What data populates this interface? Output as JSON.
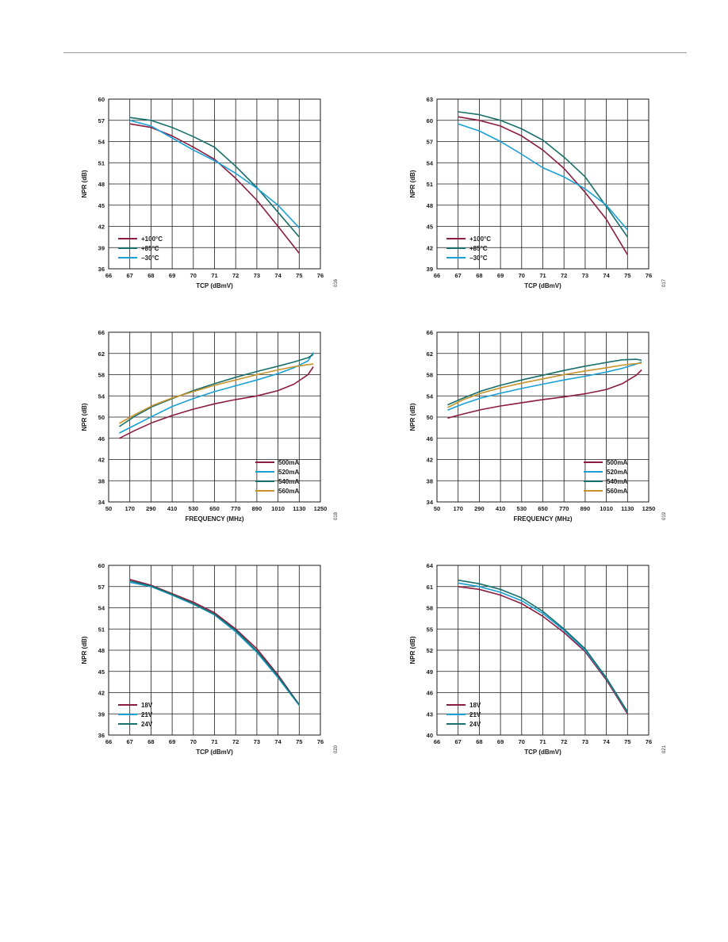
{
  "chart_data": [
    {
      "type": "line",
      "xlabel": "TCP (dBmV)",
      "ylabel": "NPR (dB)",
      "xlim": [
        66,
        76
      ],
      "ylim": [
        36,
        60
      ],
      "xticks": [
        "66",
        "67",
        "68",
        "69",
        "70",
        "71",
        "72",
        "73",
        "74",
        "75",
        "76"
      ],
      "yticks": [
        "36",
        "39",
        "42",
        "45",
        "48",
        "51",
        "54",
        "57",
        "60"
      ],
      "grid": true,
      "legend_position": "bottom-left",
      "figure_number": "016",
      "series": [
        {
          "name": "+100°C",
          "color": "#8c1c40",
          "x": [
            67,
            68,
            69,
            70,
            71,
            72,
            73,
            74,
            75
          ],
          "y": [
            56.5,
            56,
            54.8,
            53.2,
            51.5,
            48.8,
            45.7,
            42.0,
            38.2
          ]
        },
        {
          "name": "+85°C",
          "color": "#17706b",
          "x": [
            67,
            68,
            69,
            70,
            71,
            72,
            73,
            74,
            75
          ],
          "y": [
            57.4,
            57,
            56,
            54.7,
            53.2,
            50.5,
            47.5,
            44.0,
            40.5
          ]
        },
        {
          "name": "−30°C",
          "color": "#1ba0d6",
          "x": [
            67,
            68,
            69,
            70,
            71,
            72,
            73,
            74,
            75
          ],
          "y": [
            57,
            56.2,
            54.5,
            52.8,
            51.3,
            49.5,
            47.4,
            45.0,
            41.8
          ]
        }
      ]
    },
    {
      "type": "line",
      "xlabel": "TCP (dBmV)",
      "ylabel": "NPR (dB)",
      "xlim": [
        66,
        76
      ],
      "ylim": [
        39,
        63
      ],
      "xticks": [
        "66",
        "67",
        "68",
        "69",
        "70",
        "71",
        "72",
        "73",
        "74",
        "75",
        "76"
      ],
      "yticks": [
        "39",
        "42",
        "45",
        "48",
        "51",
        "54",
        "57",
        "60",
        "63"
      ],
      "grid": true,
      "legend_position": "bottom-left",
      "figure_number": "017",
      "series": [
        {
          "name": "+100°C",
          "color": "#8c1c40",
          "x": [
            67,
            68,
            69,
            70,
            71,
            72,
            73,
            74,
            75
          ],
          "y": [
            60.5,
            60.0,
            59.2,
            57.8,
            55.8,
            53.2,
            49.8,
            46.0,
            41.0
          ]
        },
        {
          "name": "+85°C",
          "color": "#17706b",
          "x": [
            67,
            68,
            69,
            70,
            71,
            72,
            73,
            74,
            75
          ],
          "y": [
            61.2,
            60.8,
            60.0,
            58.8,
            57.2,
            54.8,
            52.0,
            47.8,
            43.5
          ]
        },
        {
          "name": "−30°C",
          "color": "#1ba0d6",
          "x": [
            67,
            68,
            69,
            70,
            71,
            72,
            73,
            74,
            75
          ],
          "y": [
            59.5,
            58.5,
            57.0,
            55.2,
            53.3,
            52.0,
            50.3,
            48.0,
            44.5
          ]
        }
      ]
    },
    {
      "type": "line",
      "xlabel": "FREQUENCY (MHz)",
      "ylabel": "NPR (dB)",
      "xlim": [
        50,
        1250
      ],
      "ylim": [
        34,
        66
      ],
      "xticks": [
        "50",
        "170",
        "290",
        "410",
        "530",
        "650",
        "770",
        "890",
        "1010",
        "1130",
        "1250"
      ],
      "yticks": [
        "34",
        "38",
        "42",
        "46",
        "50",
        "54",
        "58",
        "62",
        "66"
      ],
      "grid": true,
      "legend_position": "bottom-right",
      "figure_number": "018",
      "series": [
        {
          "name": "500mA",
          "color": "#8c1c40",
          "x": [
            110,
            200,
            300,
            410,
            530,
            650,
            770,
            890,
            1010,
            1100,
            1180,
            1210
          ],
          "y": [
            46.0,
            47.5,
            49.0,
            50.3,
            51.5,
            52.5,
            53.3,
            54.0,
            55.0,
            56.2,
            58.0,
            59.5
          ]
        },
        {
          "name": "520mA",
          "color": "#1ba0d6",
          "x": [
            110,
            200,
            300,
            410,
            530,
            650,
            770,
            890,
            1010,
            1100,
            1180,
            1210
          ],
          "y": [
            47.0,
            48.5,
            50.2,
            52.0,
            53.5,
            54.8,
            55.9,
            57.0,
            58.2,
            59.3,
            60.6,
            62.2
          ]
        },
        {
          "name": "540mA",
          "color": "#17706b",
          "x": [
            110,
            200,
            300,
            410,
            530,
            650,
            770,
            890,
            1010,
            1100,
            1180,
            1210
          ],
          "y": [
            48.2,
            50.2,
            52.0,
            53.5,
            55.0,
            56.3,
            57.5,
            58.6,
            59.6,
            60.4,
            61.2,
            61.8
          ]
        },
        {
          "name": "560mA",
          "color": "#c8932a",
          "x": [
            110,
            200,
            300,
            410,
            530,
            650,
            770,
            890,
            1010,
            1100,
            1180,
            1210
          ],
          "y": [
            48.8,
            50.5,
            52.2,
            53.6,
            54.8,
            56.0,
            57.0,
            58.0,
            58.9,
            59.5,
            59.9,
            60.0
          ]
        }
      ]
    },
    {
      "type": "line",
      "xlabel": "FREQUENCY (MHz)",
      "ylabel": "NPR (dB)",
      "xlim": [
        50,
        1250
      ],
      "ylim": [
        34,
        66
      ],
      "xticks": [
        "50",
        "170",
        "290",
        "410",
        "530",
        "650",
        "770",
        "890",
        "1010",
        "1130",
        "1250"
      ],
      "yticks": [
        "34",
        "38",
        "42",
        "46",
        "50",
        "54",
        "58",
        "62",
        "66"
      ],
      "grid": true,
      "legend_position": "bottom-right",
      "figure_number": "019",
      "series": [
        {
          "name": "500mA",
          "color": "#8c1c40",
          "x": [
            110,
            200,
            300,
            410,
            530,
            650,
            770,
            890,
            1010,
            1100,
            1180,
            1210
          ],
          "y": [
            49.8,
            50.6,
            51.4,
            52.1,
            52.7,
            53.3,
            53.8,
            54.4,
            55.2,
            56.3,
            57.9,
            58.9
          ]
        },
        {
          "name": "520mA",
          "color": "#1ba0d6",
          "x": [
            110,
            200,
            300,
            410,
            530,
            650,
            770,
            890,
            1010,
            1100,
            1180,
            1210
          ],
          "y": [
            51.3,
            52.5,
            53.6,
            54.5,
            55.4,
            56.2,
            57.0,
            57.7,
            58.5,
            59.2,
            60.0,
            60.4
          ]
        },
        {
          "name": "540mA",
          "color": "#17706b",
          "x": [
            110,
            200,
            300,
            410,
            530,
            650,
            770,
            890,
            1010,
            1100,
            1180,
            1210
          ],
          "y": [
            52.3,
            53.6,
            54.9,
            56.0,
            57.0,
            57.9,
            58.8,
            59.6,
            60.3,
            60.8,
            60.9,
            60.7
          ]
        },
        {
          "name": "560mA",
          "color": "#c8932a",
          "x": [
            110,
            200,
            300,
            410,
            530,
            650,
            770,
            890,
            1010,
            1100,
            1180,
            1210
          ],
          "y": [
            51.8,
            53.3,
            54.5,
            55.5,
            56.4,
            57.2,
            58.0,
            58.7,
            59.3,
            59.8,
            60.1,
            60.2
          ]
        }
      ]
    },
    {
      "type": "line",
      "xlabel": "TCP (dBmV)",
      "ylabel": "NPR (dB)",
      "xlim": [
        66,
        76
      ],
      "ylim": [
        36,
        60
      ],
      "xticks": [
        "66",
        "67",
        "68",
        "69",
        "70",
        "71",
        "72",
        "73",
        "74",
        "75",
        "76"
      ],
      "yticks": [
        "36",
        "39",
        "42",
        "45",
        "48",
        "51",
        "54",
        "57",
        "60"
      ],
      "grid": true,
      "legend_position": "bottom-left",
      "figure_number": "020",
      "series": [
        {
          "name": "18V",
          "color": "#8c1c40",
          "x": [
            67,
            68,
            69,
            70,
            71,
            72,
            73,
            74,
            75
          ],
          "y": [
            58.0,
            57.2,
            56.0,
            54.8,
            53.3,
            51.0,
            48.2,
            44.5,
            40.3
          ]
        },
        {
          "name": "21V",
          "color": "#1ba0d6",
          "x": [
            67,
            68,
            69,
            70,
            71,
            72,
            73,
            74,
            75
          ],
          "y": [
            57.6,
            57.0,
            55.8,
            54.5,
            53.0,
            50.6,
            47.7,
            44.1,
            40.2
          ]
        },
        {
          "name": "24V",
          "color": "#17706b",
          "x": [
            67,
            68,
            69,
            70,
            71,
            72,
            73,
            74,
            75
          ],
          "y": [
            57.8,
            57.1,
            55.9,
            54.6,
            53.1,
            50.8,
            47.9,
            44.3,
            40.3
          ]
        }
      ]
    },
    {
      "type": "line",
      "xlabel": "TCP (dBmV)",
      "ylabel": "NPR (dB)",
      "xlim": [
        66,
        76
      ],
      "ylim": [
        40,
        64
      ],
      "xticks": [
        "66",
        "67",
        "68",
        "69",
        "70",
        "71",
        "72",
        "73",
        "74",
        "75",
        "76"
      ],
      "yticks": [
        "40",
        "43",
        "46",
        "49",
        "52",
        "55",
        "58",
        "61",
        "64"
      ],
      "grid": true,
      "legend_position": "bottom-left",
      "figure_number": "021",
      "series": [
        {
          "name": "18V",
          "color": "#8c1c40",
          "x": [
            67,
            68,
            69,
            70,
            71,
            72,
            73,
            74,
            75
          ],
          "y": [
            61.0,
            60.6,
            59.8,
            58.6,
            56.8,
            54.5,
            51.8,
            47.8,
            43.0
          ]
        },
        {
          "name": "21V",
          "color": "#1ba0d6",
          "x": [
            67,
            68,
            69,
            70,
            71,
            72,
            73,
            74,
            75
          ],
          "y": [
            61.5,
            61.0,
            60.2,
            59.0,
            57.2,
            54.8,
            52.0,
            48.0,
            43.2
          ]
        },
        {
          "name": "24V",
          "color": "#17706b",
          "x": [
            67,
            68,
            69,
            70,
            71,
            72,
            73,
            74,
            75
          ],
          "y": [
            61.9,
            61.4,
            60.6,
            59.4,
            57.5,
            55.0,
            52.2,
            48.1,
            43.3
          ]
        }
      ]
    }
  ]
}
